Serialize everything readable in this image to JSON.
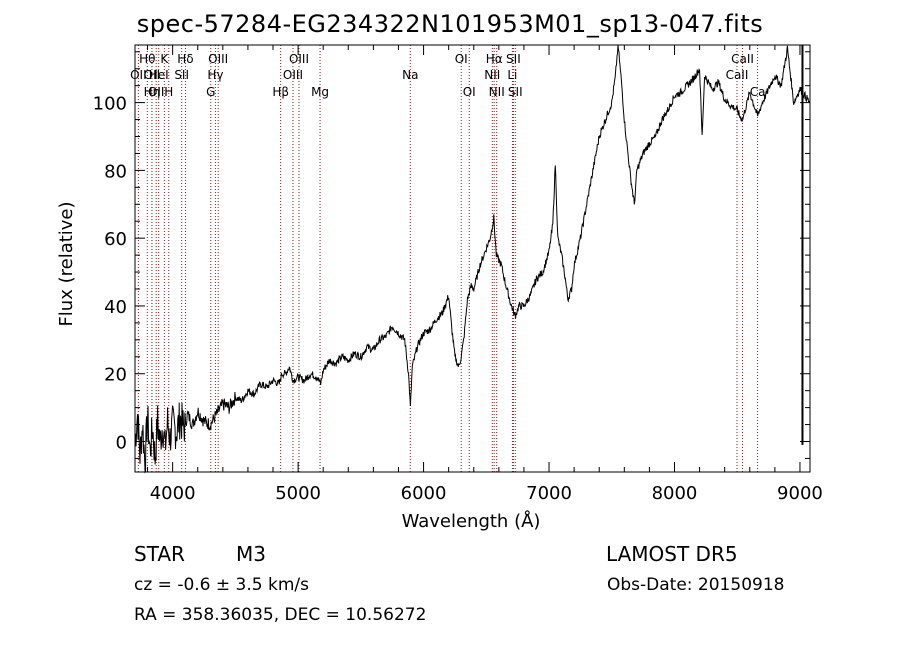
{
  "title": "spec-57284-EG234322N101953M01_sp13-047.fits",
  "info": {
    "object_class": "STAR",
    "subclass": "M3",
    "survey": "LAMOST DR5",
    "redshift_text": "cz = -0.6 ± 3.5 km/s",
    "obs_date": "Obs-Date: 20150918",
    "coords": "RA = 358.36035, DEC =  10.56272"
  },
  "chart_data": {
    "type": "line",
    "title": "spec-57284-EG234322N101953M01_sp13-047.fits",
    "xlabel": "Wavelength (Å)",
    "ylabel": "Flux (relative)",
    "xlim": [
      3700,
      9080
    ],
    "ylim": [
      -9,
      117
    ],
    "x_ticks": [
      4000,
      5000,
      6000,
      7000,
      8000,
      9000
    ],
    "y_ticks": [
      0,
      20,
      40,
      60,
      80,
      100
    ],
    "grid": false,
    "line_color": "#000000",
    "marker_line_color": "#8b1a1a",
    "spectral_lines": [
      {
        "wave": 3727,
        "label": "OII",
        "row": 2
      },
      {
        "wave": 3798,
        "label": "Hθ",
        "row": 1
      },
      {
        "wave": 3835,
        "label": "OII",
        "row": 2
      },
      {
        "wave": 3835,
        "label": "Hη",
        "row": 3
      },
      {
        "wave": 3869,
        "label": "OII",
        "row": 3
      },
      {
        "wave": 3889,
        "label": "HeI",
        "row": 2
      },
      {
        "wave": 3934,
        "label": "K",
        "row": 1
      },
      {
        "wave": 3969,
        "label": "H",
        "row": 3
      },
      {
        "wave": 4072,
        "label": "SII",
        "row": 2
      },
      {
        "wave": 4102,
        "label": "Hδ",
        "row": 1
      },
      {
        "wave": 4304,
        "label": "G",
        "row": 3
      },
      {
        "wave": 4341,
        "label": "Hγ",
        "row": 2
      },
      {
        "wave": 4363,
        "label": "OIII",
        "row": 1
      },
      {
        "wave": 4861,
        "label": "Hβ",
        "row": 3
      },
      {
        "wave": 4959,
        "label": "OIII",
        "row": 2
      },
      {
        "wave": 5007,
        "label": "OIII",
        "row": 1
      },
      {
        "wave": 5175,
        "label": "Mg",
        "row": 3
      },
      {
        "wave": 5894,
        "label": "Na",
        "row": 2
      },
      {
        "wave": 6300,
        "label": "OI",
        "row": 1
      },
      {
        "wave": 6364,
        "label": "OI",
        "row": 3
      },
      {
        "wave": 6548,
        "label": "NII",
        "row": 2
      },
      {
        "wave": 6563,
        "label": "Hα",
        "row": 1
      },
      {
        "wave": 6583,
        "label": "NII",
        "row": 3
      },
      {
        "wave": 6708,
        "label": "Li",
        "row": 2
      },
      {
        "wave": 6716,
        "label": "SII",
        "row": 1
      },
      {
        "wave": 6731,
        "label": "SII",
        "row": 3
      },
      {
        "wave": 8498,
        "label": "CaII",
        "row": 2
      },
      {
        "wave": 8542,
        "label": "CaII",
        "row": 1
      },
      {
        "wave": 8662,
        "label": "Ca",
        "row": 3
      }
    ],
    "spectrum": [
      [
        3700,
        0
      ],
      [
        3720,
        8
      ],
      [
        3740,
        -4
      ],
      [
        3760,
        5
      ],
      [
        3780,
        -6
      ],
      [
        3800,
        7
      ],
      [
        3820,
        -3
      ],
      [
        3840,
        4
      ],
      [
        3860,
        -5
      ],
      [
        3880,
        6
      ],
      [
        3900,
        0
      ],
      [
        3920,
        5
      ],
      [
        3940,
        -2
      ],
      [
        3960,
        6
      ],
      [
        3980,
        1
      ],
      [
        4000,
        5
      ],
      [
        4030,
        3
      ],
      [
        4060,
        7
      ],
      [
        4090,
        4
      ],
      [
        4120,
        8
      ],
      [
        4160,
        5
      ],
      [
        4200,
        9
      ],
      [
        4250,
        6
      ],
      [
        4300,
        5
      ],
      [
        4350,
        8
      ],
      [
        4400,
        11
      ],
      [
        4450,
        10
      ],
      [
        4500,
        13
      ],
      [
        4550,
        12
      ],
      [
        4600,
        15
      ],
      [
        4650,
        14
      ],
      [
        4700,
        17
      ],
      [
        4750,
        16
      ],
      [
        4800,
        18
      ],
      [
        4850,
        17
      ],
      [
        4870,
        20
      ],
      [
        4900,
        20
      ],
      [
        4930,
        22
      ],
      [
        4960,
        18
      ],
      [
        5000,
        19
      ],
      [
        5050,
        18
      ],
      [
        5100,
        20
      ],
      [
        5150,
        19
      ],
      [
        5180,
        17
      ],
      [
        5200,
        21
      ],
      [
        5250,
        24
      ],
      [
        5300,
        23
      ],
      [
        5350,
        25
      ],
      [
        5400,
        24
      ],
      [
        5450,
        26
      ],
      [
        5500,
        25
      ],
      [
        5550,
        28
      ],
      [
        5600,
        27
      ],
      [
        5650,
        30
      ],
      [
        5700,
        31
      ],
      [
        5750,
        34
      ],
      [
        5800,
        32
      ],
      [
        5850,
        30
      ],
      [
        5880,
        20
      ],
      [
        5895,
        10
      ],
      [
        5910,
        22
      ],
      [
        5950,
        28
      ],
      [
        6000,
        32
      ],
      [
        6050,
        33
      ],
      [
        6100,
        36
      ],
      [
        6150,
        38
      ],
      [
        6200,
        43
      ],
      [
        6220,
        35
      ],
      [
        6250,
        25
      ],
      [
        6280,
        22
      ],
      [
        6300,
        25
      ],
      [
        6320,
        30
      ],
      [
        6350,
        42
      ],
      [
        6380,
        46
      ],
      [
        6400,
        45
      ],
      [
        6450,
        52
      ],
      [
        6500,
        57
      ],
      [
        6530,
        60
      ],
      [
        6560,
        66
      ],
      [
        6580,
        55
      ],
      [
        6620,
        52
      ],
      [
        6650,
        47
      ],
      [
        6700,
        40
      ],
      [
        6730,
        37
      ],
      [
        6760,
        40
      ],
      [
        6800,
        40
      ],
      [
        6850,
        43
      ],
      [
        6900,
        48
      ],
      [
        6950,
        50
      ],
      [
        7000,
        56
      ],
      [
        7030,
        64
      ],
      [
        7050,
        82
      ],
      [
        7070,
        60
      ],
      [
        7100,
        55
      ],
      [
        7130,
        48
      ],
      [
        7150,
        42
      ],
      [
        7180,
        45
      ],
      [
        7200,
        52
      ],
      [
        7250,
        60
      ],
      [
        7300,
        70
      ],
      [
        7350,
        80
      ],
      [
        7400,
        90
      ],
      [
        7450,
        95
      ],
      [
        7500,
        100
      ],
      [
        7530,
        108
      ],
      [
        7550,
        117
      ],
      [
        7580,
        105
      ],
      [
        7600,
        95
      ],
      [
        7620,
        88
      ],
      [
        7650,
        78
      ],
      [
        7680,
        70
      ],
      [
        7700,
        80
      ],
      [
        7750,
        85
      ],
      [
        7800,
        88
      ],
      [
        7850,
        90
      ],
      [
        7900,
        95
      ],
      [
        7950,
        98
      ],
      [
        8000,
        102
      ],
      [
        8050,
        103
      ],
      [
        8100,
        105
      ],
      [
        8150,
        107
      ],
      [
        8200,
        110
      ],
      [
        8220,
        90
      ],
      [
        8240,
        108
      ],
      [
        8300,
        104
      ],
      [
        8350,
        106
      ],
      [
        8400,
        101
      ],
      [
        8450,
        99
      ],
      [
        8498,
        98
      ],
      [
        8520,
        96
      ],
      [
        8542,
        95
      ],
      [
        8600,
        103
      ],
      [
        8662,
        96
      ],
      [
        8700,
        100
      ],
      [
        8750,
        104
      ],
      [
        8800,
        108
      ],
      [
        8850,
        105
      ],
      [
        8900,
        116
      ],
      [
        8950,
        100
      ],
      [
        9000,
        104
      ],
      [
        9040,
        102
      ],
      [
        9080,
        100
      ]
    ]
  }
}
